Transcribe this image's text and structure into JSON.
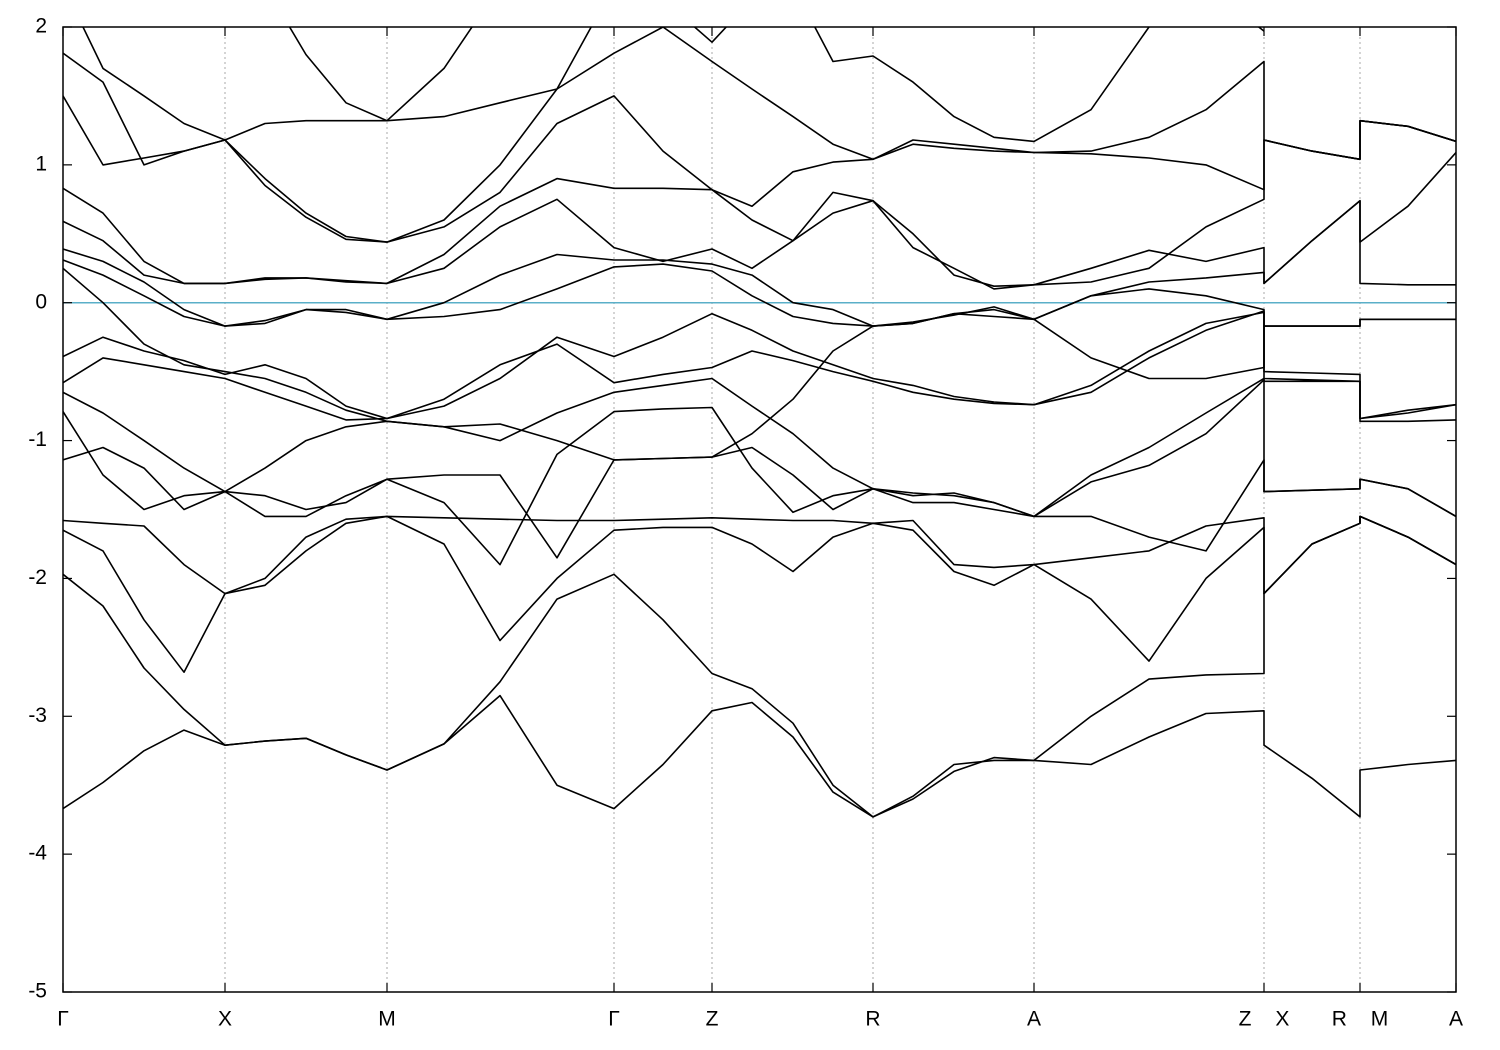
{
  "chart_data": {
    "type": "line",
    "xlim": [
      0,
      1393
    ],
    "ylim": [
      -5,
      2
    ],
    "yticks": [
      2,
      1,
      0,
      -1,
      -2,
      -3,
      -4,
      -5
    ],
    "xticks": [
      {
        "value": 0,
        "label": "Γ"
      },
      {
        "value": 162,
        "label": "X"
      },
      {
        "value": 324,
        "label": "M"
      },
      {
        "value": 551,
        "label": "Γ"
      },
      {
        "value": 649,
        "label": "Z"
      },
      {
        "value": 810,
        "label": "R"
      },
      {
        "value": 971,
        "label": "A"
      },
      {
        "value": 1201,
        "label": "Z X"
      },
      {
        "value": 1297,
        "label": "R M"
      },
      {
        "value": 1393,
        "label": "A"
      }
    ],
    "grid": true,
    "color": "#000000",
    "hline": {
      "value": 0,
      "color": "#5aafc8"
    },
    "x": [
      0,
      40,
      81,
      121,
      162,
      202,
      243,
      283,
      324,
      381,
      437,
      494,
      551,
      600,
      649,
      689,
      730,
      770,
      810,
      850,
      891,
      931,
      971,
      1028,
      1086,
      1143,
      1201,
      1201,
      1249,
      1297,
      1297,
      1345,
      1393
    ],
    "series": [
      {
        "values": [
          -3.67,
          -3.48,
          -3.25,
          -3.1,
          -3.21,
          -3.18,
          -3.16,
          -3.28,
          -3.39,
          -3.2,
          -2.85,
          -3.5,
          -3.67,
          -3.35,
          -2.96,
          -2.9,
          -3.15,
          -3.55,
          -3.73,
          -3.6,
          -3.4,
          -3.3,
          -3.32,
          -3.35,
          -3.15,
          -2.98,
          -2.96,
          -3.21,
          -3.45,
          -3.73,
          -3.39,
          -3.35,
          -3.32
        ]
      },
      {
        "values": [
          -1.97,
          -2.2,
          -2.65,
          -2.95,
          -3.21,
          -3.18,
          -3.16,
          -3.28,
          -3.39,
          -3.2,
          -2.75,
          -2.15,
          -1.97,
          -2.3,
          -2.69,
          -2.8,
          -3.05,
          -3.5,
          -3.73,
          -3.58,
          -3.35,
          -3.32,
          -3.32,
          -3.0,
          -2.73,
          -2.7,
          -2.69,
          -2.11,
          -1.75,
          -1.6,
          -1.55,
          -1.7,
          -1.9
        ]
      },
      {
        "values": [
          -1.65,
          -1.8,
          -2.3,
          -2.68,
          -2.11,
          -2.05,
          -1.8,
          -1.6,
          -1.55,
          -1.75,
          -2.45,
          -2.0,
          -1.65,
          -1.63,
          -1.63,
          -1.75,
          -1.95,
          -1.7,
          -1.6,
          -1.65,
          -1.95,
          -2.05,
          -1.9,
          -2.15,
          -2.6,
          -2.0,
          -1.63,
          -2.11,
          -1.75,
          -1.6,
          -1.55,
          -1.7,
          -1.9
        ]
      },
      {
        "values": [
          -1.58,
          -1.6,
          -1.62,
          -1.9,
          -2.11,
          -2.0,
          -1.7,
          -1.57,
          -1.55,
          -1.56,
          -1.57,
          -1.58,
          -1.58,
          -1.57,
          -1.56,
          -1.57,
          -1.58,
          -1.58,
          -1.6,
          -1.58,
          -1.9,
          -1.92,
          -1.9,
          -1.85,
          -1.8,
          -1.62,
          -1.56,
          -2.11,
          -1.75,
          -1.6,
          -1.55,
          -1.7,
          -1.9
        ]
      },
      {
        "values": [
          -1.14,
          -1.05,
          -1.2,
          -1.5,
          -1.37,
          -1.4,
          -1.5,
          -1.45,
          -1.28,
          -1.25,
          -1.25,
          -1.85,
          -1.14,
          -1.13,
          -1.12,
          -1.05,
          -1.25,
          -1.5,
          -1.35,
          -1.45,
          -1.45,
          -1.5,
          -1.55,
          -1.55,
          -1.7,
          -1.8,
          -1.14,
          -1.37,
          -1.36,
          -1.35,
          -1.28,
          -1.35,
          -1.55
        ]
      },
      {
        "values": [
          -0.79,
          -1.25,
          -1.5,
          -1.4,
          -1.37,
          -1.55,
          -1.55,
          -1.4,
          -1.28,
          -1.45,
          -1.9,
          -1.1,
          -0.79,
          -0.77,
          -0.76,
          -1.2,
          -1.52,
          -1.4,
          -1.35,
          -1.38,
          -1.4,
          -1.45,
          -1.55,
          -1.3,
          -1.18,
          -0.95,
          -0.56,
          -1.37,
          -1.36,
          -1.35,
          -1.28,
          -1.35,
          -1.55
        ]
      },
      {
        "values": [
          -0.65,
          -0.8,
          -1.0,
          -1.2,
          -1.37,
          -1.2,
          -1.0,
          -0.9,
          -0.86,
          -0.9,
          -1.0,
          -0.8,
          -0.65,
          -0.6,
          -0.55,
          -0.75,
          -0.95,
          -1.2,
          -1.35,
          -1.4,
          -1.38,
          -1.45,
          -1.55,
          -1.25,
          -1.05,
          -0.8,
          -0.55,
          -0.57,
          -0.57,
          -0.57,
          -0.86,
          -0.86,
          -0.85
        ]
      },
      {
        "values": [
          -0.58,
          -0.4,
          -0.45,
          -0.5,
          -0.55,
          -0.65,
          -0.75,
          -0.85,
          -0.84,
          -0.7,
          -0.45,
          -0.3,
          -0.58,
          -0.52,
          -0.47,
          -0.35,
          -0.42,
          -0.5,
          -0.57,
          -0.65,
          -0.7,
          -0.73,
          -0.74,
          -0.65,
          -0.4,
          -0.2,
          -0.06,
          -0.55,
          -0.56,
          -0.57,
          -0.84,
          -0.8,
          -0.74
        ]
      },
      {
        "values": [
          -0.39,
          -0.25,
          -0.35,
          -0.42,
          -0.52,
          -0.45,
          -0.55,
          -0.75,
          -0.84,
          -0.75,
          -0.55,
          -0.25,
          -0.39,
          -0.25,
          -0.08,
          -0.2,
          -0.35,
          -0.45,
          -0.55,
          -0.6,
          -0.68,
          -0.72,
          -0.74,
          -0.6,
          -0.35,
          -0.15,
          -0.07,
          -0.5,
          -0.51,
          -0.52,
          -0.84,
          -0.78,
          -0.74
        ]
      },
      {
        "values": [
          0.25,
          0.0,
          -0.3,
          -0.45,
          -0.5,
          -0.55,
          -0.65,
          -0.78,
          -0.86,
          -0.9,
          -0.88,
          -1.0,
          -1.14,
          -1.13,
          -1.12,
          -0.95,
          -0.7,
          -0.35,
          -0.17,
          -0.15,
          -0.08,
          -0.05,
          -0.12,
          -0.4,
          -0.55,
          -0.55,
          -0.47,
          -0.17,
          -0.17,
          -0.17,
          -0.12,
          -0.12,
          -0.12
        ]
      },
      {
        "values": [
          0.31,
          0.2,
          0.05,
          -0.1,
          -0.17,
          -0.15,
          -0.05,
          -0.07,
          -0.12,
          -0.1,
          -0.05,
          0.1,
          0.26,
          0.28,
          0.23,
          0.05,
          -0.1,
          -0.15,
          -0.17,
          -0.14,
          -0.09,
          -0.03,
          -0.12,
          0.05,
          0.1,
          0.05,
          -0.05,
          -0.17,
          -0.17,
          -0.17,
          -0.12,
          -0.12,
          -0.12
        ]
      },
      {
        "values": [
          0.39,
          0.3,
          0.15,
          -0.05,
          -0.17,
          -0.13,
          -0.05,
          -0.05,
          -0.12,
          0.0,
          0.2,
          0.35,
          0.31,
          0.31,
          0.28,
          0.2,
          0.0,
          -0.05,
          -0.17,
          -0.15,
          -0.08,
          -0.1,
          -0.12,
          0.05,
          0.15,
          0.18,
          0.22,
          0.14,
          0.45,
          0.74,
          0.14,
          0.13,
          0.13
        ]
      },
      {
        "values": [
          0.59,
          0.45,
          0.2,
          0.14,
          0.14,
          0.17,
          0.18,
          0.16,
          0.14,
          0.25,
          0.55,
          0.75,
          0.4,
          0.3,
          0.39,
          0.25,
          0.45,
          0.65,
          0.74,
          0.4,
          0.25,
          0.1,
          0.13,
          0.25,
          0.38,
          0.3,
          0.4,
          0.14,
          0.45,
          0.74,
          0.44,
          0.7,
          1.09
        ]
      },
      {
        "values": [
          0.83,
          0.65,
          0.3,
          0.14,
          0.14,
          0.18,
          0.18,
          0.15,
          0.14,
          0.35,
          0.7,
          0.9,
          0.83,
          0.83,
          0.82,
          0.6,
          0.45,
          0.8,
          0.74,
          0.5,
          0.2,
          0.12,
          0.13,
          0.15,
          0.25,
          0.55,
          0.75,
          1.18,
          1.1,
          1.04,
          1.32,
          1.28,
          1.17
        ]
      },
      {
        "values": [
          1.5,
          1.0,
          1.05,
          1.1,
          1.18,
          0.9,
          0.65,
          0.48,
          0.44,
          0.55,
          0.8,
          1.3,
          1.5,
          1.1,
          0.82,
          0.7,
          0.95,
          1.02,
          1.04,
          1.15,
          1.12,
          1.1,
          1.09,
          1.08,
          1.05,
          1.0,
          0.82,
          1.18,
          1.1,
          1.04,
          1.32,
          1.28,
          1.17
        ]
      },
      {
        "values": [
          1.81,
          1.6,
          1.0,
          1.1,
          1.18,
          0.85,
          0.62,
          0.46,
          0.44,
          0.6,
          1.0,
          1.55,
          1.81,
          2.0,
          1.75,
          1.55,
          1.35,
          1.15,
          1.04,
          1.18,
          1.15,
          1.12,
          1.09,
          1.1,
          1.2,
          1.4,
          1.75,
          1.18,
          1.1,
          1.04,
          1.32,
          1.28,
          1.17
        ]
      },
      {
        "values": [
          2.3,
          1.7,
          1.5,
          1.3,
          1.18,
          1.3,
          1.32,
          1.32,
          1.32,
          1.35,
          1.45,
          1.55,
          2.3,
          2.2,
          1.89,
          2.2,
          2.3,
          1.75,
          1.79,
          1.6,
          1.35,
          1.2,
          1.17,
          1.4,
          2.0,
          2.3,
          1.97,
          null,
          null,
          null,
          null,
          null,
          null
        ]
      },
      {
        "values": [
          null,
          null,
          null,
          null,
          2.5,
          2.3,
          1.8,
          1.45,
          1.32,
          1.7,
          2.3,
          null,
          null,
          null,
          null,
          null,
          null,
          null,
          null,
          null,
          null,
          null,
          null,
          null,
          null,
          null,
          null,
          null,
          null,
          null,
          null,
          null,
          null
        ]
      }
    ]
  }
}
